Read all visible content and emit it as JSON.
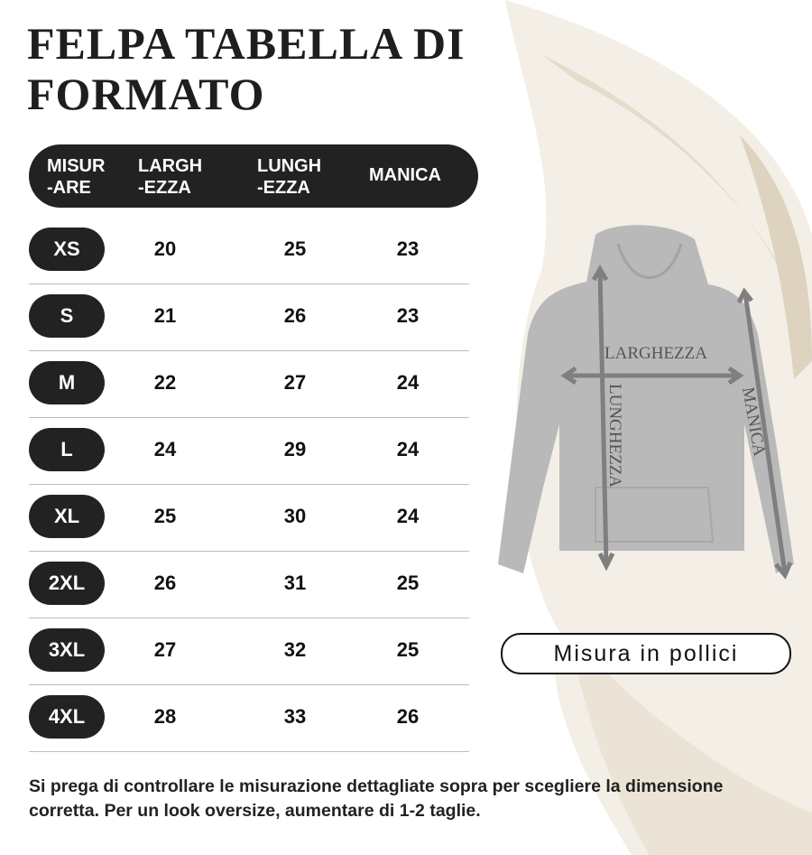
{
  "title": {
    "line1": "FELPA TABELLA DI",
    "line2": "FORMATO"
  },
  "table": {
    "headers": [
      {
        "line1": "MISUR",
        "line2": "-ARE"
      },
      {
        "line1": "LARGH",
        "line2": "-EZZA"
      },
      {
        "line1": "LUNGH",
        "line2": "-EZZA"
      },
      {
        "line1": "MANICA",
        "line2": ""
      }
    ],
    "rows": [
      {
        "size": "XS",
        "larghezza": "20",
        "lunghezza": "25",
        "manica": "23"
      },
      {
        "size": "S",
        "larghezza": "21",
        "lunghezza": "26",
        "manica": "23"
      },
      {
        "size": "M",
        "larghezza": "22",
        "lunghezza": "27",
        "manica": "24"
      },
      {
        "size": "L",
        "larghezza": "24",
        "lunghezza": "29",
        "manica": "24"
      },
      {
        "size": "XL",
        "larghezza": "25",
        "lunghezza": "30",
        "manica": "24"
      },
      {
        "size": "2XL",
        "larghezza": "26",
        "lunghezza": "31",
        "manica": "25"
      },
      {
        "size": "3XL",
        "larghezza": "27",
        "lunghezza": "32",
        "manica": "25"
      },
      {
        "size": "4XL",
        "larghezza": "28",
        "lunghezza": "33",
        "manica": "26"
      }
    ]
  },
  "diagram": {
    "width_label": "LARGHEZZA",
    "length_label": "LUNGHEZZA",
    "sleeve_label": "MANICA",
    "garment_color": "#b9b9b9"
  },
  "unit_badge": "Misura in pollici",
  "note": "Si prega di controllare le misurazione dettagliate sopra per scegliere la dimensione corretta. Per un look oversize, aumentare di 1-2 taglie."
}
